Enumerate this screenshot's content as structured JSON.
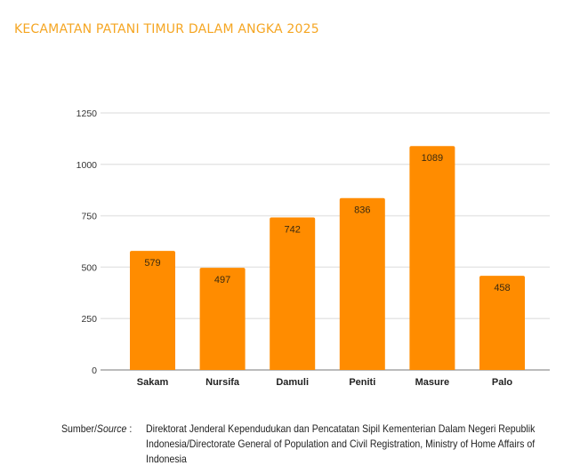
{
  "header": {
    "title": "KECAMATAN PATANI TIMUR DALAM ANGKA 2025"
  },
  "colors": {
    "bar": "#ff8c00",
    "title": "#f5a623",
    "grid": "#e6e6e6",
    "axis": "#bbbbbb"
  },
  "chart_data": {
    "type": "bar",
    "title": "",
    "xlabel": "",
    "ylabel": "",
    "categories": [
      "Sakam",
      "Nursifa",
      "Damuli",
      "Peniti",
      "Masure",
      "Palo"
    ],
    "values": [
      579,
      497,
      742,
      836,
      1089,
      458
    ],
    "data_labels": [
      "579",
      "497",
      "742",
      "836",
      "1089",
      "458"
    ],
    "ylim": [
      0,
      1250
    ],
    "yticks": [
      0,
      250,
      500,
      750,
      1000,
      1250
    ],
    "ytick_labels": [
      "0",
      "250",
      "500",
      "750",
      "1000",
      "1250"
    ],
    "grid": true,
    "legend": "none"
  },
  "source": {
    "label_id": "Sumber/",
    "label_en": "Source",
    "label_sep": " :",
    "text": "Direktorat Jenderal Kependudukan dan Pencatatan Sipil Kementerian Dalam Negeri Republik Indonesia/Directorate General of Population and Civil Registration, Ministry of Home Affairs of Indonesia"
  }
}
